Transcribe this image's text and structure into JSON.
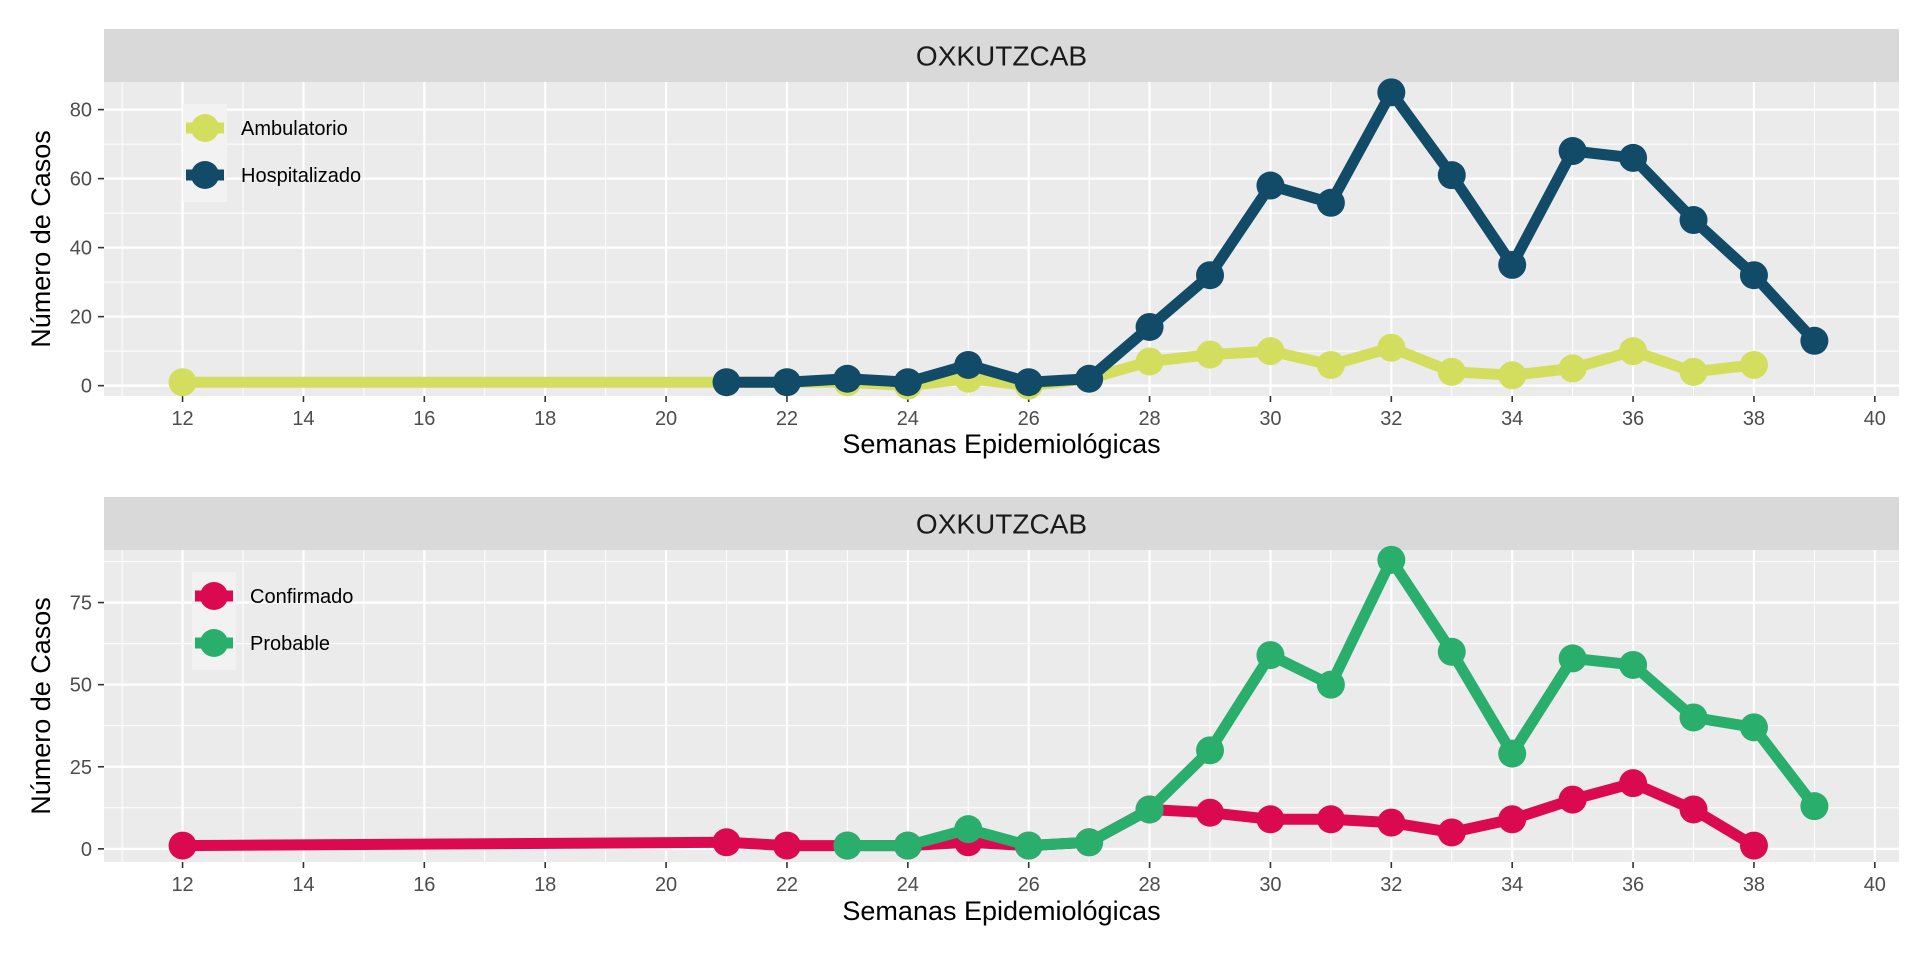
{
  "chart_data": [
    {
      "type": "line",
      "title": "OXKUTZCAB",
      "xlabel": "Semanas Epidemiológicas",
      "ylabel": "Número de Casos",
      "xlim": [
        10.7,
        40.4
      ],
      "ylim": [
        -3,
        88
      ],
      "xticks": [
        12,
        14,
        16,
        18,
        20,
        22,
        24,
        26,
        28,
        30,
        32,
        34,
        36,
        38,
        40
      ],
      "yticks": [
        0,
        20,
        40,
        60,
        80
      ],
      "grid": true,
      "legend_position": "top-left",
      "series": [
        {
          "name": "Ambulatorio",
          "color": "#d4de5e",
          "x": [
            12,
            21,
            22,
            23,
            24,
            25,
            26,
            27,
            28,
            29,
            30,
            31,
            32,
            33,
            34,
            35,
            36,
            37,
            38
          ],
          "y": [
            1,
            1,
            1,
            1,
            0,
            2,
            0,
            2,
            7,
            9,
            10,
            6,
            11,
            4,
            3,
            5,
            10,
            4,
            6
          ]
        },
        {
          "name": "Hospitalizado",
          "color": "#124b68",
          "x": [
            21,
            22,
            23,
            24,
            25,
            26,
            27,
            28,
            29,
            30,
            31,
            32,
            33,
            34,
            35,
            36,
            37,
            38,
            39
          ],
          "y": [
            1,
            1,
            2,
            1,
            6,
            1,
            2,
            17,
            32,
            58,
            53,
            85,
            61,
            35,
            68,
            66,
            48,
            32,
            13
          ]
        }
      ]
    },
    {
      "type": "line",
      "title": "OXKUTZCAB",
      "xlabel": "Semanas Epidemiológicas",
      "ylabel": "Número de Casos",
      "xlim": [
        10.7,
        40.4
      ],
      "ylim": [
        -4,
        91
      ],
      "xticks": [
        12,
        14,
        16,
        18,
        20,
        22,
        24,
        26,
        28,
        30,
        32,
        34,
        36,
        38,
        40
      ],
      "yticks": [
        0,
        25,
        50,
        75
      ],
      "grid": true,
      "legend_position": "top-left",
      "series": [
        {
          "name": "Confirmado",
          "color": "#db0a50",
          "x": [
            12,
            21,
            22,
            23,
            24,
            25,
            26,
            27,
            28,
            29,
            30,
            31,
            32,
            33,
            34,
            35,
            36,
            37,
            38
          ],
          "y": [
            1,
            2,
            1,
            1,
            1,
            2,
            1,
            2,
            12,
            11,
            9,
            9,
            8,
            5,
            9,
            15,
            20,
            12,
            1
          ]
        },
        {
          "name": "Probable",
          "color": "#2aae6b",
          "x": [
            23,
            24,
            25,
            26,
            27,
            28,
            29,
            30,
            31,
            32,
            33,
            34,
            35,
            36,
            37,
            38,
            39
          ],
          "y": [
            1,
            1,
            6,
            1,
            2,
            12,
            30,
            59,
            50,
            88,
            60,
            29,
            58,
            56,
            40,
            37,
            13
          ]
        }
      ]
    }
  ]
}
